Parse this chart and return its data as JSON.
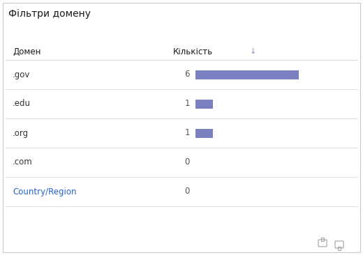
{
  "title": "Фільтри домену",
  "col1_header": "Домен",
  "col2_header": "Кількість",
  "rows": [
    {
      "label": ".gov",
      "value": 6,
      "is_link": false
    },
    {
      "label": ".edu",
      "value": 1,
      "is_link": false
    },
    {
      "label": ".org",
      "value": 1,
      "is_link": false
    },
    {
      "label": ".com",
      "value": 0,
      "is_link": false
    },
    {
      "label": "Country/Region",
      "value": 0,
      "is_link": true
    }
  ],
  "max_value": 6,
  "bar_color": "#7B80C0",
  "background_color": "#FFFFFF",
  "border_color": "#D8D8D8",
  "title_color": "#1a1a1a",
  "header_color": "#1a1a1a",
  "label_color": "#333333",
  "link_color": "#2563CC",
  "value_color": "#555555",
  "sort_arrow_color": "#8888CC",
  "figwidth": 5.2,
  "figheight": 3.66,
  "dpi": 100
}
